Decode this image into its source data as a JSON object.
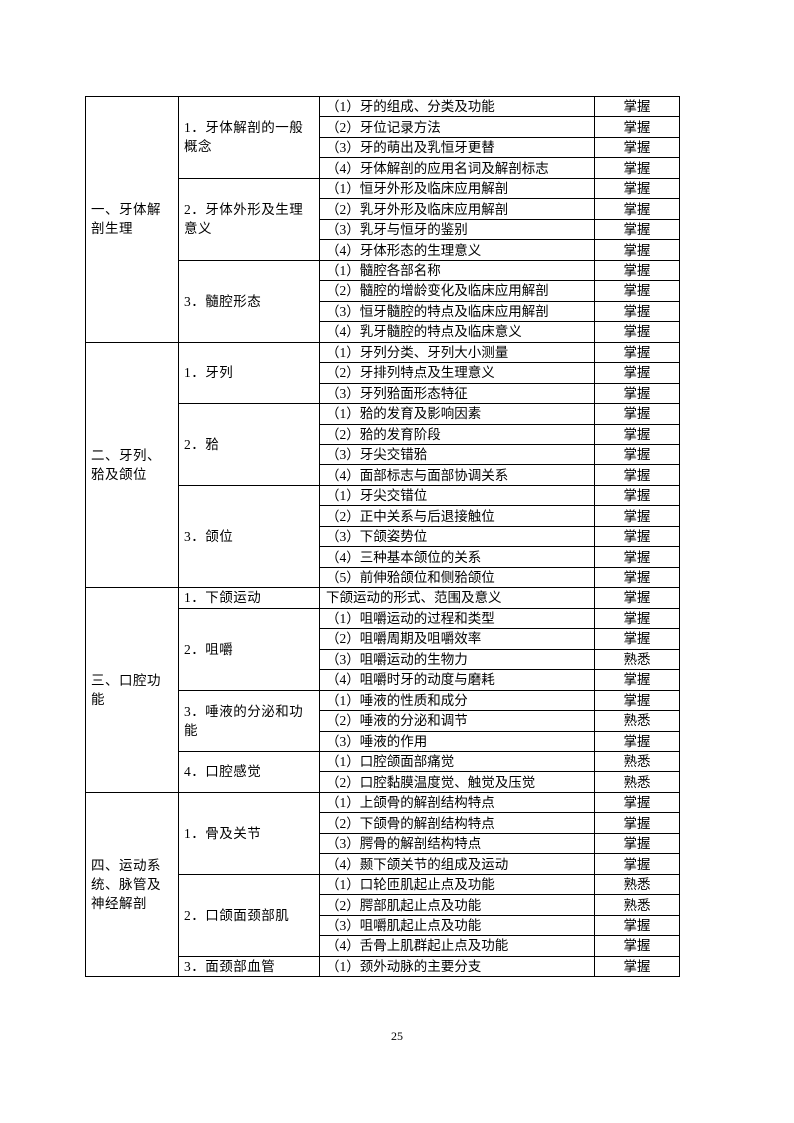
{
  "sections": [
    {
      "title": "一、牙体解剖生理",
      "topics": [
        {
          "title": "1．牙体解剖的一般概念",
          "items": [
            {
              "text": "（1）牙的组成、分类及功能",
              "level": "掌握"
            },
            {
              "text": "（2）牙位记录方法",
              "level": "掌握"
            },
            {
              "text": "（3）牙的萌出及乳恒牙更替",
              "level": "掌握"
            },
            {
              "text": "（4）牙体解剖的应用名词及解剖标志",
              "level": "掌握"
            }
          ]
        },
        {
          "title": "2．牙体外形及生理意义",
          "items": [
            {
              "text": "（1）恒牙外形及临床应用解剖",
              "level": "掌握"
            },
            {
              "text": "（2）乳牙外形及临床应用解剖",
              "level": "掌握"
            },
            {
              "text": "（3）乳牙与恒牙的鉴别",
              "level": "掌握"
            },
            {
              "text": "（4）牙体形态的生理意义",
              "level": "掌握"
            }
          ]
        },
        {
          "title": "3．髓腔形态",
          "items": [
            {
              "text": "（1）髓腔各部名称",
              "level": "掌握"
            },
            {
              "text": "（2）髓腔的增龄变化及临床应用解剖",
              "level": "掌握"
            },
            {
              "text": "（3）恒牙髓腔的特点及临床应用解剖",
              "level": "掌握"
            },
            {
              "text": "（4）乳牙髓腔的特点及临床意义",
              "level": "掌握"
            }
          ]
        }
      ]
    },
    {
      "title": "二、牙列、𬌗及颌位",
      "topics": [
        {
          "title": "1．牙列",
          "items": [
            {
              "text": "（1）牙列分类、牙列大小测量",
              "level": "掌握"
            },
            {
              "text": "（2）牙排列特点及生理意义",
              "level": "掌握"
            },
            {
              "text": "（3）牙列𬌗面形态特征",
              "level": "掌握"
            }
          ]
        },
        {
          "title": "2．𬌗",
          "items": [
            {
              "text": "（1）𬌗的发育及影响因素",
              "level": "掌握"
            },
            {
              "text": "（2）𬌗的发育阶段",
              "level": "掌握"
            },
            {
              "text": "（3）牙尖交错𬌗",
              "level": "掌握"
            },
            {
              "text": "（4）面部标志与面部协调关系",
              "level": "掌握"
            }
          ]
        },
        {
          "title": "3．颌位",
          "items": [
            {
              "text": "（1）牙尖交错位",
              "level": "掌握"
            },
            {
              "text": "（2）正中关系与后退接触位",
              "level": "掌握"
            },
            {
              "text": "（3）下颌姿势位",
              "level": "掌握"
            },
            {
              "text": "（4）三种基本颌位的关系",
              "level": "掌握"
            },
            {
              "text": "（5）前伸𬌗颌位和侧𬌗颌位",
              "level": "掌握"
            }
          ]
        }
      ]
    },
    {
      "title": "三、口腔功能",
      "topics": [
        {
          "title": "1．下颌运动",
          "items": [
            {
              "text": "下颌运动的形式、范围及意义",
              "level": "掌握"
            }
          ]
        },
        {
          "title": "2．咀嚼",
          "items": [
            {
              "text": "（1）咀嚼运动的过程和类型",
              "level": "掌握"
            },
            {
              "text": "（2）咀嚼周期及咀嚼效率",
              "level": "掌握"
            },
            {
              "text": "（3）咀嚼运动的生物力",
              "level": "熟悉"
            },
            {
              "text": "（4）咀嚼时牙的动度与磨耗",
              "level": "掌握"
            }
          ]
        },
        {
          "title": "3．唾液的分泌和功能",
          "items": [
            {
              "text": "（1）唾液的性质和成分",
              "level": "掌握"
            },
            {
              "text": "（2）唾液的分泌和调节",
              "level": "熟悉"
            },
            {
              "text": "（3）唾液的作用",
              "level": "掌握"
            }
          ]
        },
        {
          "title": "4．口腔感觉",
          "items": [
            {
              "text": "（1）口腔颌面部痛觉",
              "level": "熟悉"
            },
            {
              "text": "（2）口腔黏膜温度觉、触觉及压觉",
              "level": "熟悉"
            }
          ]
        }
      ]
    },
    {
      "title": "四、运动系统、脉管及神经解剖",
      "topics": [
        {
          "title": "1．骨及关节",
          "items": [
            {
              "text": "（1）上颌骨的解剖结构特点",
              "level": "掌握"
            },
            {
              "text": "（2）下颌骨的解剖结构特点",
              "level": "掌握"
            },
            {
              "text": "（3）腭骨的解剖结构特点",
              "level": "掌握"
            },
            {
              "text": "（4）颞下颌关节的组成及运动",
              "level": "掌握"
            }
          ]
        },
        {
          "title": "2．口颌面颈部肌",
          "items": [
            {
              "text": "（1）口轮匝肌起止点及功能",
              "level": "熟悉"
            },
            {
              "text": "（2）腭部肌起止点及功能",
              "level": "熟悉"
            },
            {
              "text": "（3）咀嚼肌起止点及功能",
              "level": "掌握"
            },
            {
              "text": "（4）舌骨上肌群起止点及功能",
              "level": "掌握"
            }
          ]
        },
        {
          "title": "3．面颈部血管",
          "items": [
            {
              "text": "（1）颈外动脉的主要分支",
              "level": "掌握"
            }
          ]
        }
      ]
    }
  ],
  "page_number": "25"
}
